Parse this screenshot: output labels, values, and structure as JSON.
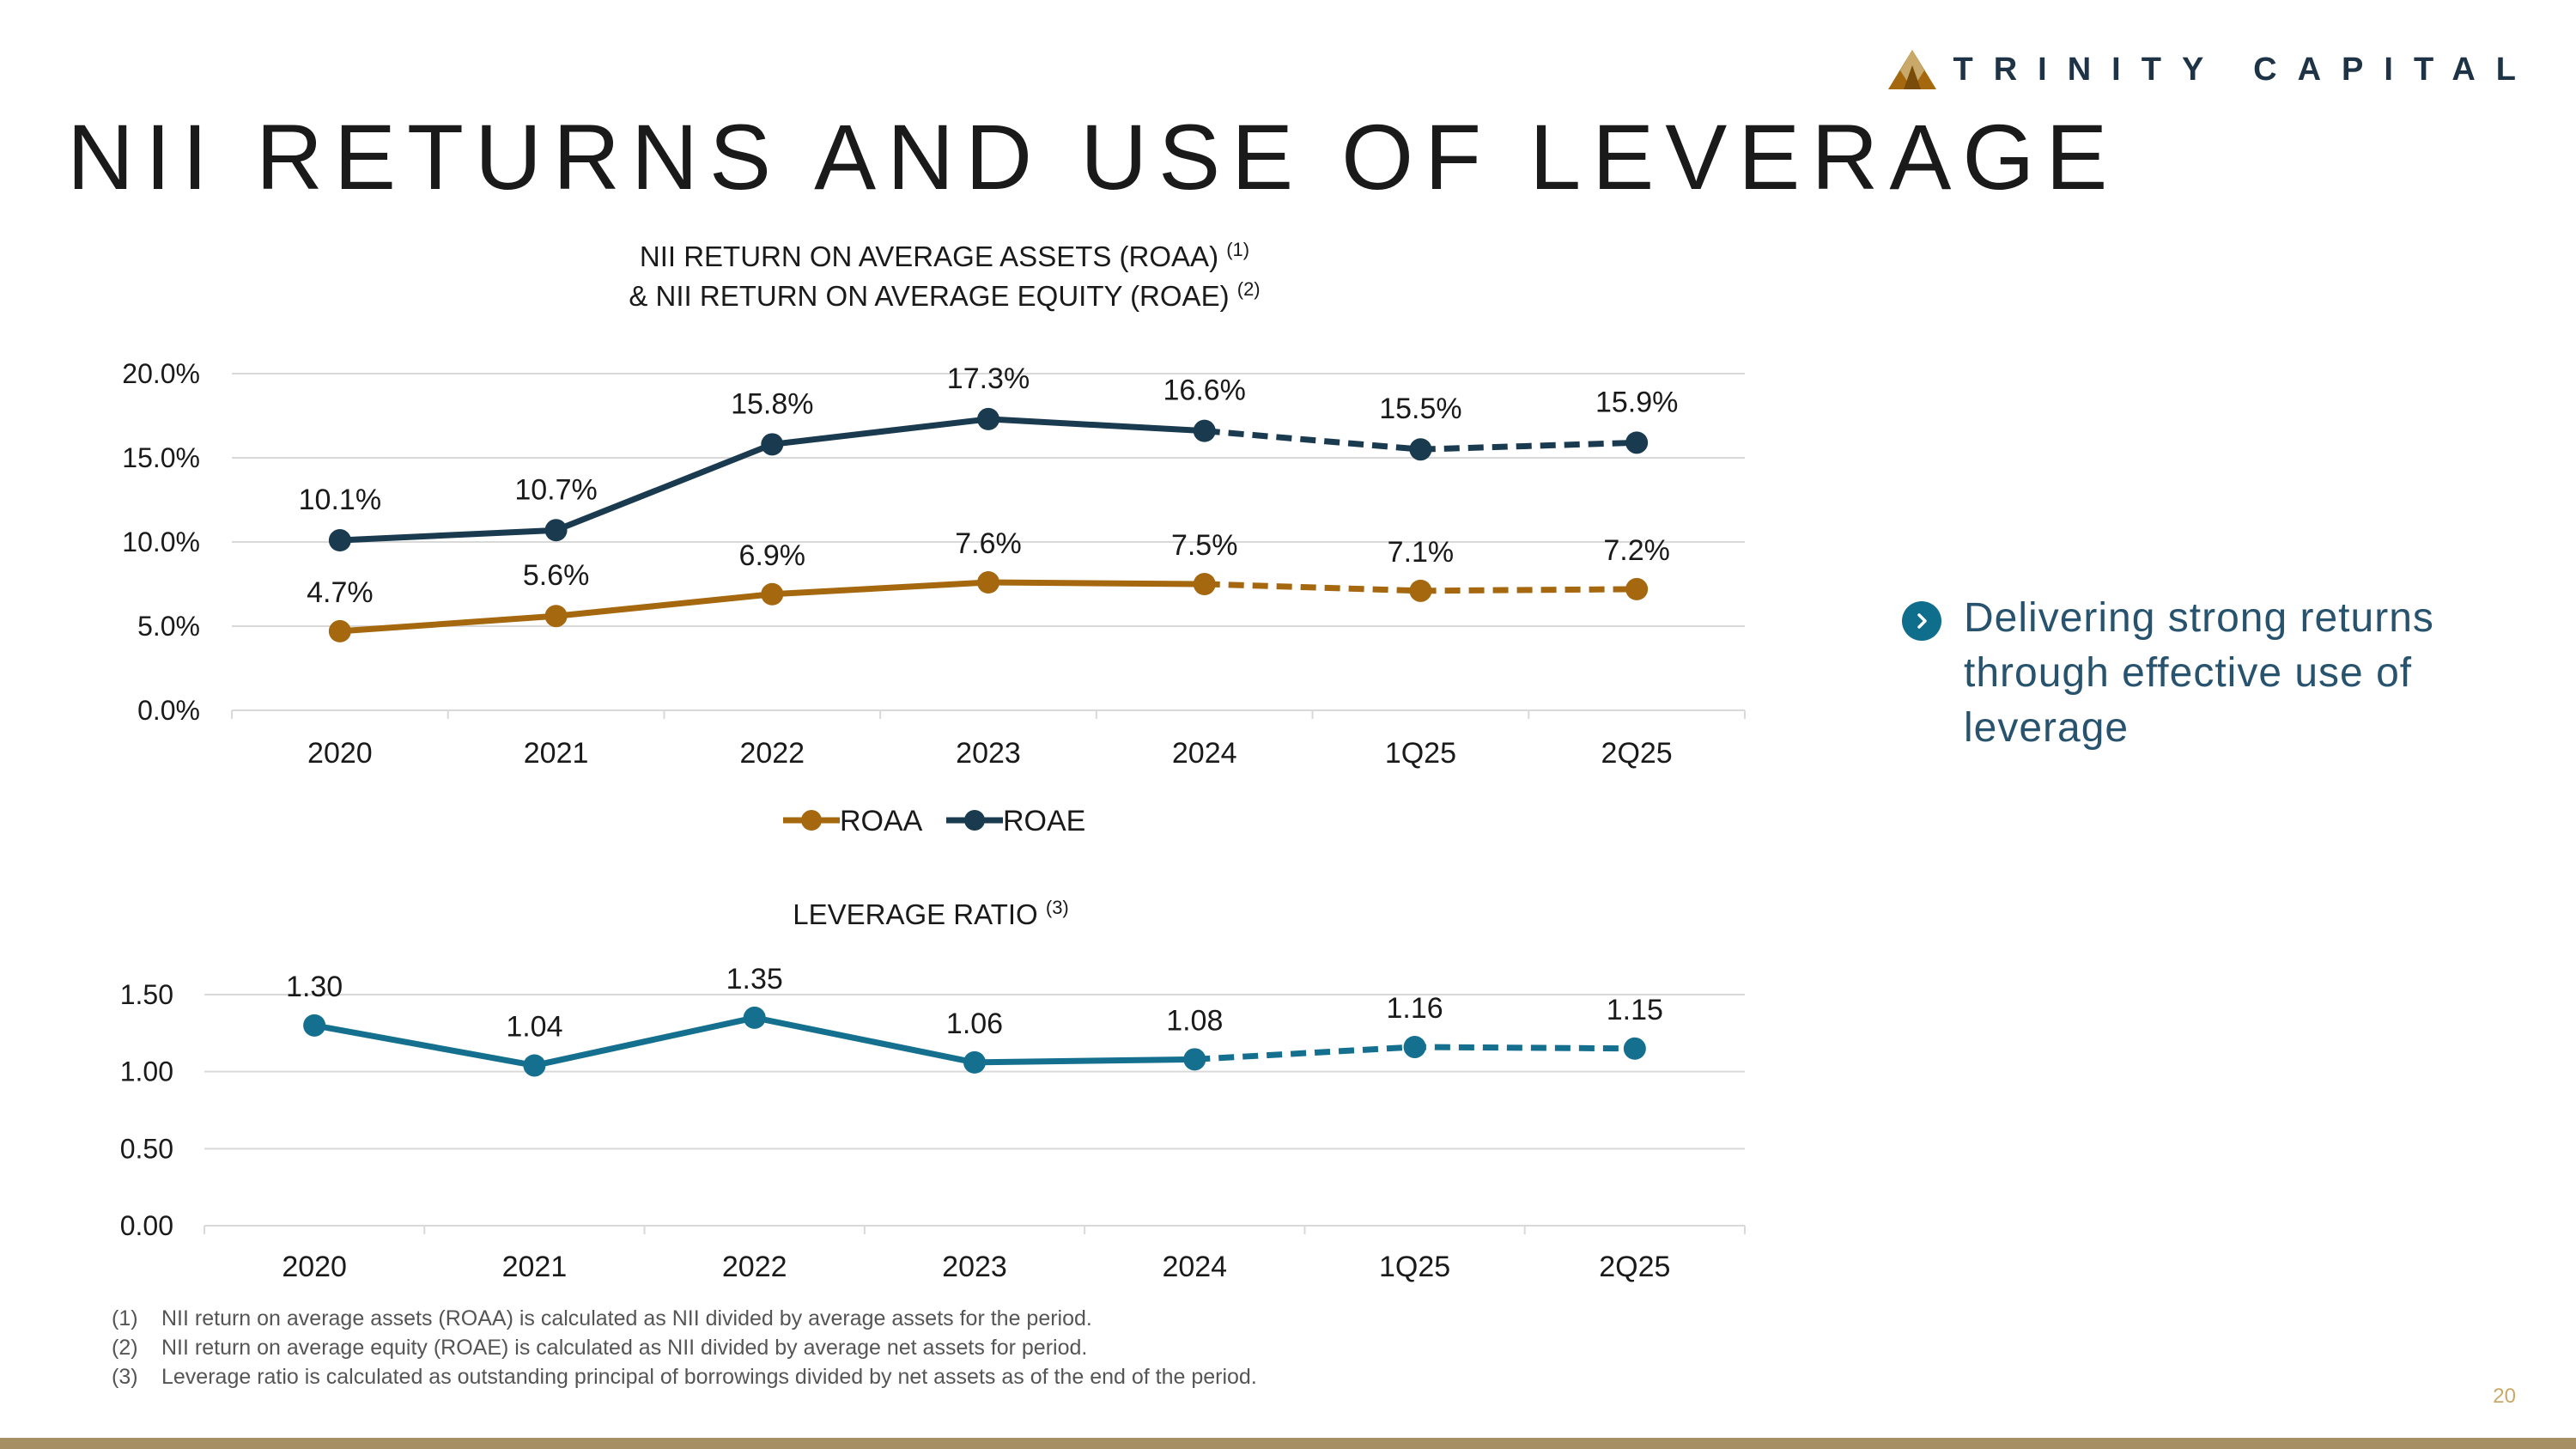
{
  "header": {
    "logo_text": "TRINITY CAPITAL",
    "page_title": "NII RETURNS AND USE OF LEVERAGE"
  },
  "colors": {
    "roaa": "#a5680f",
    "roae": "#1a3a4f",
    "leverage": "#14708e",
    "grid": "#d9d9d9",
    "accent_bar": "#a68f62"
  },
  "chart_data": [
    {
      "id": "returns",
      "type": "line",
      "title_line1": "NII RETURN ON AVERAGE ASSETS (ROAA)",
      "title_sup1": "(1)",
      "title_line2": "& NII RETURN ON AVERAGE EQUITY (ROAE)",
      "title_sup2": "(2)",
      "categories": [
        "2020",
        "2021",
        "2022",
        "2023",
        "2024",
        "1Q25",
        "2Q25"
      ],
      "projected_from_index": 4,
      "ylim": [
        0,
        20
      ],
      "yticks": [
        0,
        5,
        10,
        15,
        20
      ],
      "ytick_labels": [
        "0.0%",
        "5.0%",
        "10.0%",
        "15.0%",
        "20.0%"
      ],
      "legend_position": "bottom-center",
      "series": [
        {
          "name": "ROAA",
          "values": [
            4.7,
            5.6,
            6.9,
            7.6,
            7.5,
            7.1,
            7.2
          ],
          "labels": [
            "4.7%",
            "5.6%",
            "6.9%",
            "7.6%",
            "7.5%",
            "7.1%",
            "7.2%"
          ]
        },
        {
          "name": "ROAE",
          "values": [
            10.1,
            10.7,
            15.8,
            17.3,
            16.6,
            15.5,
            15.9
          ],
          "labels": [
            "10.1%",
            "10.7%",
            "15.8%",
            "17.3%",
            "16.6%",
            "15.5%",
            "15.9%"
          ]
        }
      ]
    },
    {
      "id": "leverage",
      "type": "line",
      "title": "LEVERAGE RATIO",
      "title_sup": "(3)",
      "categories": [
        "2020",
        "2021",
        "2022",
        "2023",
        "2024",
        "1Q25",
        "2Q25"
      ],
      "projected_from_index": 4,
      "ylim": [
        0,
        1.5
      ],
      "yticks": [
        0,
        0.5,
        1.0,
        1.5
      ],
      "ytick_labels": [
        "0.00",
        "0.50",
        "1.00",
        "1.50"
      ],
      "series": [
        {
          "name": "Leverage Ratio",
          "values": [
            1.3,
            1.04,
            1.35,
            1.06,
            1.08,
            1.16,
            1.15
          ],
          "labels": [
            "1.30",
            "1.04",
            "1.35",
            "1.06",
            "1.08",
            "1.16",
            "1.15"
          ]
        }
      ]
    }
  ],
  "callout": {
    "text": "Delivering strong returns through effective use of leverage"
  },
  "footnotes": [
    {
      "num": "(1)",
      "text": "NII return on average assets (ROAA) is calculated as NII divided by average assets for the period."
    },
    {
      "num": "(2)",
      "text": "NII return on average equity (ROAE) is calculated as NII divided by average net assets for period."
    },
    {
      "num": "(3)",
      "text": "Leverage ratio is calculated as outstanding principal of borrowings divided by net assets as of the end of the period."
    }
  ],
  "page_number": "20"
}
